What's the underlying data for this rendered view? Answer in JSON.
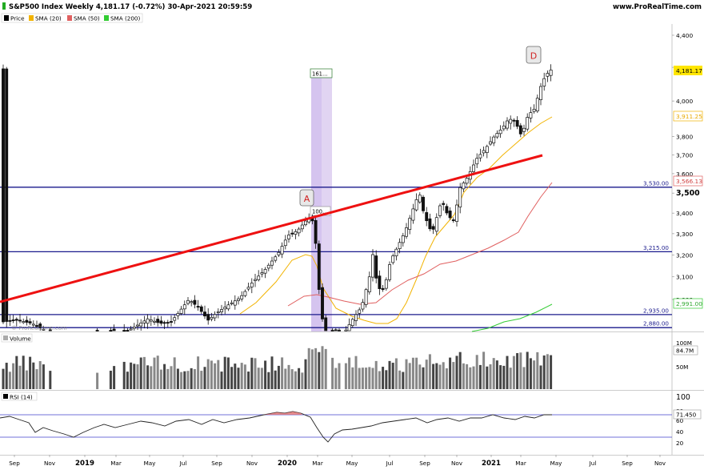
{
  "header": {
    "title": "S&P500 Index Weekly 4,181.17 (-0.72%) 30-Apr-2021 20:59:59",
    "source": "www.ProRealTime.com"
  },
  "legend": [
    {
      "label": "Price",
      "color": "#000000"
    },
    {
      "label": "SMA (20)",
      "color": "#f2b300"
    },
    {
      "label": "SMA (50)",
      "color": "#e06060"
    },
    {
      "label": "SMA (200)",
      "color": "#33cc33"
    }
  ],
  "annotations": {
    "marker_a": "A",
    "marker_d": "D",
    "fib_top": "161...",
    "fib_bottom": "100...",
    "watermark": "© ProRealTime.com"
  },
  "panels": {
    "volume_label": "Volume",
    "rsi_label": "RSI (14)"
  },
  "price_axis": {
    "ticks": [
      "4,400",
      "4,200",
      "4,000",
      "3,800",
      "3,700",
      "3,600",
      "3,500",
      "3,400",
      "3,300",
      "3,200",
      "3,100",
      "3,000"
    ]
  },
  "badges": {
    "last": {
      "text": "4,181.17",
      "bg": "#ffe600",
      "fg": "#000000"
    },
    "sma20": {
      "text": "3,911.25",
      "fg": "#e8a800"
    },
    "sma50": {
      "text": "3,566.13",
      "fg": "#d04040"
    },
    "sma200": {
      "text": "2,991.00",
      "fg": "#33aa33"
    },
    "vol": {
      "text": "84.7M"
    },
    "rsi": {
      "text": "71.450"
    }
  },
  "volume_axis": {
    "ticks": [
      "100M",
      "50M"
    ]
  },
  "rsi_axis": {
    "ticks": [
      "100",
      "80",
      "60",
      "40",
      "20"
    ]
  },
  "x_axis": {
    "ticks": [
      "Sep",
      "Nov",
      "2019",
      "Mar",
      "May",
      "Jul",
      "Sep",
      "Nov",
      "2020",
      "Mar",
      "May",
      "Jul",
      "Sep",
      "Nov",
      "2021",
      "Mar",
      "May",
      "Jul",
      "Sep",
      "Nov"
    ]
  },
  "chart_data": {
    "type": "candlestick",
    "title": "S&P500 Index Weekly 4,181.17 (-0.72%) 30-Apr-2021 20:59:59",
    "y_scale": "log",
    "ylim": [
      2860,
      4480
    ],
    "horizontal_levels": [
      {
        "value": 3530,
        "label": "3,530.00"
      },
      {
        "value": 3215,
        "label": "3,215.00"
      },
      {
        "value": 2935,
        "label": "2,935.00"
      },
      {
        "value": 2880,
        "label": "2,880.00"
      }
    ],
    "trendline": {
      "from": [
        "2018-08",
        3000
      ],
      "to": [
        "2021-03",
        3700
      ],
      "color": "#ee1111"
    },
    "fib_zone": {
      "from": "2020-02",
      "to": "2020-03",
      "levels": [
        "100",
        "161.8"
      ]
    },
    "sma_series": [
      {
        "name": "SMA (20)",
        "last": 3911.25
      },
      {
        "name": "SMA (50)",
        "last": 3566.13
      },
      {
        "name": "SMA (200)",
        "last": 2991.0
      }
    ],
    "last_close": 4181.17,
    "last_volume": "84.7M",
    "last_rsi": 71.45,
    "x_range": [
      "2018-09",
      "2021-11"
    ]
  }
}
